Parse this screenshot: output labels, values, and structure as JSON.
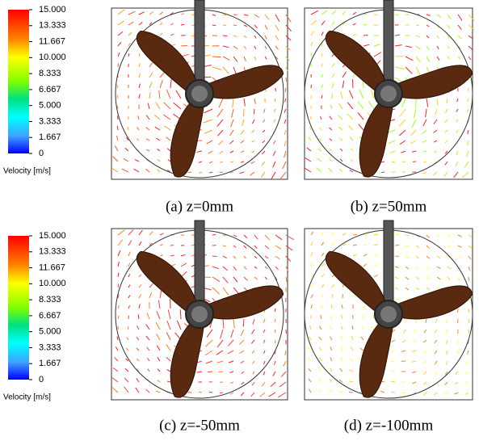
{
  "legends": [
    {
      "ticks": [
        "15.000",
        "13.333",
        "11.667",
        "10.000",
        "8.333",
        "6.667",
        "5.000",
        "3.333",
        "1.667",
        "0"
      ],
      "label": "Velocity [m/s]"
    },
    {
      "ticks": [
        "15.000",
        "13.333",
        "11.667",
        "10.000",
        "8.333",
        "6.667",
        "5.000",
        "3.333",
        "1.667",
        "0"
      ],
      "label": "Velocity [m/s]"
    }
  ],
  "panels": [
    {
      "caption": "(a) z=0mm"
    },
    {
      "caption": "(b) z=50mm"
    },
    {
      "caption": "(c) z=-50mm"
    },
    {
      "caption": "(d) z=-100mm"
    }
  ]
}
